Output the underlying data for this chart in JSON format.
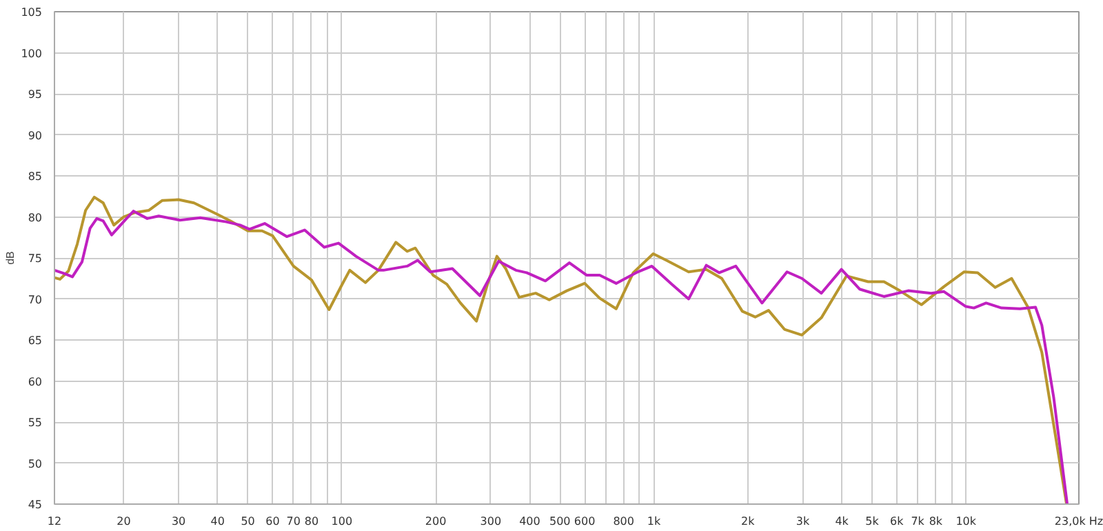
{
  "chart_data": {
    "type": "line",
    "ylabel": "dB",
    "log": "x",
    "grid": true,
    "line_style": "solid",
    "xlim": [
      12,
      23000
    ],
    "ylim": [
      45,
      105
    ],
    "xticks": [
      12,
      20,
      30,
      40,
      50,
      60,
      70,
      80,
      {
        "value": 90,
        "label": null
      },
      100,
      200,
      300,
      400,
      500,
      600,
      {
        "value": 700,
        "label": null
      },
      800,
      {
        "value": 900,
        "label": null
      },
      {
        "value": 1000,
        "label": "1k"
      },
      {
        "value": 2000,
        "label": "2k"
      },
      {
        "value": 3000,
        "label": "3k"
      },
      {
        "value": 4000,
        "label": "4k"
      },
      {
        "value": 5000,
        "label": "5k"
      },
      {
        "value": 6000,
        "label": "6k"
      },
      {
        "value": 7000,
        "label": "7k"
      },
      {
        "value": 8000,
        "label": "8k"
      },
      {
        "value": 9000,
        "label": null
      },
      {
        "value": 10000,
        "label": "10k"
      },
      {
        "value": 23000,
        "label": "23,0k Hz"
      }
    ],
    "yticks": [
      45,
      50,
      55,
      60,
      65,
      70,
      75,
      80,
      85,
      90,
      95,
      100,
      105
    ],
    "series": [
      {
        "color": "#b8962e",
        "x": [
          12,
          12.5,
          13.3,
          14.2,
          15.1,
          16.1,
          17.2,
          18.6,
          20,
          21.6,
          24.1,
          26.6,
          30,
          33.6,
          40,
          44,
          50,
          55.5,
          60,
          70,
          80,
          91,
          100,
          106,
          119,
          131,
          149,
          162,
          172,
          196,
          217,
          240,
          270,
          293,
          314,
          335,
          370,
          418,
          462,
          526,
          600,
          670,
          757,
          859,
          995,
          1097,
          1292,
          1472,
          1650,
          1920,
          2112,
          2330,
          2620,
          2980,
          3440,
          4140,
          4860,
          5460,
          6140,
          7200,
          8500,
          9870,
          10900,
          12400,
          14000,
          15800,
          17500,
          19300,
          21000
        ],
        "values": [
          72.6,
          72.4,
          73.4,
          76.7,
          80.8,
          82.4,
          81.7,
          79.0,
          80.0,
          80.5,
          80.8,
          82.0,
          82.1,
          81.7,
          80.3,
          79.5,
          78.3,
          78.3,
          77.7,
          74.0,
          72.3,
          68.7,
          71.7,
          73.5,
          72.0,
          73.5,
          76.9,
          75.8,
          76.2,
          72.9,
          71.8,
          69.5,
          67.3,
          71.8,
          75.2,
          73.7,
          70.2,
          70.7,
          69.9,
          71.0,
          71.9,
          70.1,
          68.8,
          73.2,
          75.5,
          74.7,
          73.3,
          73.6,
          72.5,
          68.5,
          67.8,
          68.6,
          66.3,
          65.6,
          67.7,
          72.8,
          72.1,
          72.1,
          71.0,
          69.3,
          71.5,
          73.3,
          73.2,
          71.4,
          72.5,
          69.0,
          63.5,
          53.6,
          45.0
        ]
      },
      {
        "color": "#c020c0",
        "x": [
          12,
          12.9,
          13.7,
          14.7,
          15.6,
          16.4,
          17.2,
          18.3,
          20.3,
          21.5,
          23.8,
          25.9,
          30.3,
          35.2,
          42.6,
          47.2,
          50.6,
          56.6,
          66.6,
          76,
          87.8,
          97.6,
          111,
          131,
          136,
          162,
          175,
          192,
          226,
          277,
          318,
          361,
          391,
          449,
          536,
          608,
          670,
          757,
          877,
          985,
          1140,
          1292,
          1472,
          1620,
          1830,
          2220,
          2670,
          2980,
          3440,
          3990,
          4560,
          5460,
          6530,
          7730,
          8500,
          9960,
          10600,
          11600,
          13000,
          14900,
          16700,
          17500,
          19100,
          21100
        ],
        "values": [
          73.5,
          73.1,
          72.7,
          74.5,
          78.6,
          79.8,
          79.5,
          77.8,
          79.7,
          80.7,
          79.8,
          80.1,
          79.6,
          79.9,
          79.4,
          79.0,
          78.5,
          79.2,
          77.6,
          78.4,
          76.3,
          76.8,
          75.2,
          73.5,
          73.5,
          74.0,
          74.7,
          73.3,
          73.7,
          70.4,
          74.6,
          73.5,
          73.2,
          72.2,
          74.4,
          72.9,
          72.9,
          71.9,
          73.2,
          74.0,
          71.8,
          70.0,
          74.1,
          73.2,
          74.0,
          69.5,
          73.3,
          72.5,
          70.7,
          73.6,
          71.2,
          70.3,
          71.0,
          70.7,
          70.9,
          69.1,
          68.9,
          69.5,
          68.9,
          68.8,
          69.0,
          66.8,
          58.0,
          45.0
        ]
      }
    ]
  }
}
